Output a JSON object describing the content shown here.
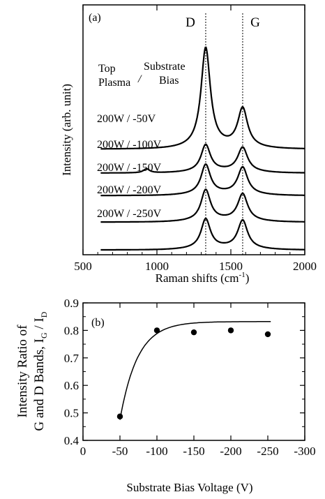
{
  "chart_data": [
    {
      "panel": "(a)",
      "type": "line",
      "xlabel": "Raman shifts (cm",
      "xlabel_sup": "-1",
      "xlabel_tail": ")",
      "ylabel": "Intensity (arb. unit)",
      "xlim": [
        500,
        2000
      ],
      "xticks": [
        "500",
        "1000",
        "1500",
        "2000"
      ],
      "xtick_values": [
        500,
        1000,
        1500,
        2000
      ],
      "band_labels": [
        {
          "text": "D",
          "x": 1330
        },
        {
          "text": "G",
          "x": 1580
        }
      ],
      "reference_lines_x": [
        1330,
        1580
      ],
      "legend_header": {
        "left": [
          "Top",
          "Plasma"
        ],
        "sep": "/",
        "right": [
          "Substrate",
          "Bias"
        ]
      },
      "series": [
        {
          "label": "200W / -50V",
          "baseline": 0.9,
          "d_height": 3.75,
          "g_height": 1.45,
          "d_width": 38,
          "g_width": 40,
          "shoulder": 0.0
        },
        {
          "label": "200W / -100V",
          "baseline": 0.0,
          "d_height": 1.0,
          "g_height": 0.9,
          "d_width": 38,
          "g_width": 40,
          "shoulder": 0.15
        },
        {
          "label": "200W / -150V",
          "baseline": -0.85,
          "d_height": 1.1,
          "g_height": 1.0,
          "d_width": 38,
          "g_width": 40,
          "shoulder": 0.0
        },
        {
          "label": "200W / -200V",
          "baseline": -1.85,
          "d_height": 1.15,
          "g_height": 1.0,
          "d_width": 38,
          "g_width": 40,
          "shoulder": 0.0
        },
        {
          "label": "200W / -250V",
          "baseline": -2.9,
          "d_height": 1.1,
          "g_height": 1.05,
          "d_width": 38,
          "g_width": 40,
          "shoulder": 0.0
        }
      ]
    },
    {
      "panel": "(b)",
      "type": "scatter",
      "xlabel": "Substrate Bias Voltage (V)",
      "ylabel_line1": "Intensity Ratio of",
      "ylabel_line2": "G and D Bands, I",
      "ylabel_sub1": "G",
      "ylabel_mid": " / I",
      "ylabel_sub2": "D",
      "xlim": [
        0,
        -300
      ],
      "ylim": [
        0.4,
        0.9
      ],
      "xticks": [
        "0",
        "-50",
        "-100",
        "-150",
        "-200",
        "-250",
        "-300"
      ],
      "xtick_values": [
        0,
        -50,
        -100,
        -150,
        -200,
        -250,
        -300
      ],
      "yticks": [
        "0.4",
        "0.5",
        "0.6",
        "0.7",
        "0.8",
        "0.9"
      ],
      "ytick_values": [
        0.4,
        0.5,
        0.6,
        0.7,
        0.8,
        0.9
      ],
      "points": [
        {
          "x": -50,
          "y": 0.487
        },
        {
          "x": -100,
          "y": 0.8
        },
        {
          "x": -150,
          "y": 0.793
        },
        {
          "x": -200,
          "y": 0.8
        },
        {
          "x": -250,
          "y": 0.786
        }
      ],
      "fit_curve": {
        "x_start": -50,
        "x_end": -255,
        "y_min": 0.475,
        "y_max": 0.832,
        "rate": 0.042
      }
    }
  ]
}
